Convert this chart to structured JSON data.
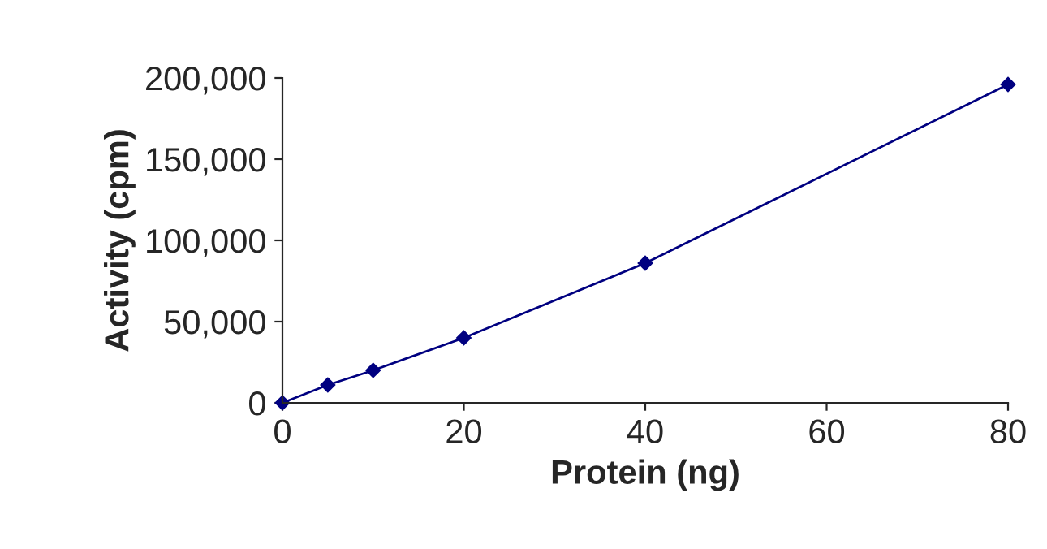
{
  "chart_data": {
    "type": "line",
    "xlabel": "Protein (ng)",
    "ylabel": "Activity (cpm)",
    "x": [
      0,
      5,
      10,
      20,
      40,
      80
    ],
    "series": [
      {
        "color": "#000080",
        "values": [
          0,
          11000,
          20000,
          40000,
          86000,
          196000
        ]
      }
    ],
    "xlim": [
      0,
      80
    ],
    "xticks": [
      0,
      20,
      40,
      60,
      80
    ],
    "ylim": [
      0,
      200000
    ],
    "yticks": [
      {
        "value": 0,
        "label": "0"
      },
      {
        "value": 50000,
        "label": "50,000"
      },
      {
        "value": 100000,
        "label": "100,000"
      },
      {
        "value": 150000,
        "label": "150,000"
      },
      {
        "value": 200000,
        "label": "200,000"
      }
    ],
    "marker": "diamond",
    "line_style": "solid",
    "grid": false,
    "legend": false
  }
}
